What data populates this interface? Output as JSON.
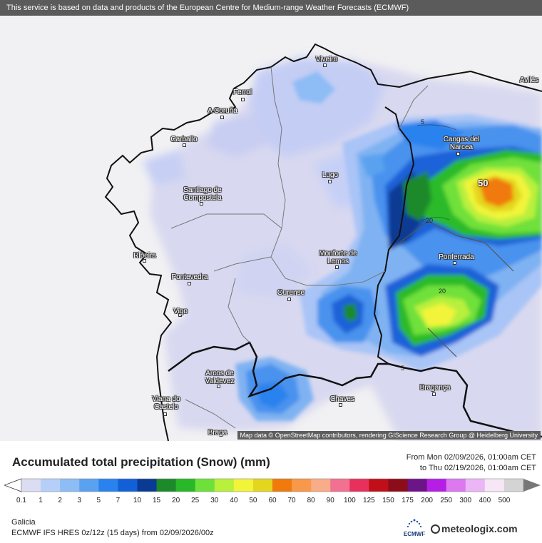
{
  "header": {
    "notice": "This service is based on data and products of the European Centre for Medium-range Weather Forecasts (ECMWF)"
  },
  "map": {
    "attribution": "Map data © OpenStreetMap contributors, rendering GIScience Research Group @ Heidelberg University",
    "cities": [
      {
        "name": "Viveiro"
      },
      {
        "name": "Avilés"
      },
      {
        "name": "Ferrol"
      },
      {
        "name": "A Coruña"
      },
      {
        "name": "Carballo"
      },
      {
        "name": "Cangas del Narcea"
      },
      {
        "name": "Lugo"
      },
      {
        "name": "Santiago de Compostela"
      },
      {
        "name": "Ribeira"
      },
      {
        "name": "Pontevedra"
      },
      {
        "name": "Monforte de Lemos"
      },
      {
        "name": "Ponferrada"
      },
      {
        "name": "Ourense"
      },
      {
        "name": "Vigo"
      },
      {
        "name": "Arcos de Valdevez"
      },
      {
        "name": "Chaves"
      },
      {
        "name": "Bragança"
      },
      {
        "name": "Viana do Castelo"
      },
      {
        "name": "Braga"
      }
    ],
    "contour_labels": [
      "5",
      "20",
      "20",
      "5"
    ],
    "max_value_label": "50"
  },
  "legend": {
    "title": "Accumulated total precipitation (Snow) (mm)",
    "from": "From Mon 02/09/2026, 01:00am CET",
    "to": "to Thu 02/19/2026, 01:00am CET",
    "levels": [
      "0.1",
      "1",
      "2",
      "3",
      "5",
      "7",
      "10",
      "15",
      "20",
      "25",
      "30",
      "40",
      "50",
      "60",
      "70",
      "80",
      "90",
      "100",
      "125",
      "150",
      "175",
      "200",
      "250",
      "300",
      "400",
      "500"
    ],
    "colors": [
      "#dcdcf2",
      "#b6cff8",
      "#8ebcf5",
      "#5aa2f0",
      "#2a82ee",
      "#1260d8",
      "#0a3a93",
      "#1d8a2a",
      "#28b828",
      "#6ee03a",
      "#b8f03c",
      "#f2f43a",
      "#e4d61e",
      "#f07a0c",
      "#f89848",
      "#f8ac88",
      "#f27090",
      "#e8305c",
      "#c00f18",
      "#8c0c1a",
      "#6c1488",
      "#b61ee6",
      "#dc78f0",
      "#ecb6f6",
      "#f6e6f6",
      "#d4d4d4"
    ]
  },
  "footer": {
    "region": "Galicia",
    "model": "ECMWF IFS HRES 0z/12z (15 days) from  02/09/2026/00z",
    "brand": "meteologix.com",
    "ecmwf_label": "ECMWF"
  }
}
